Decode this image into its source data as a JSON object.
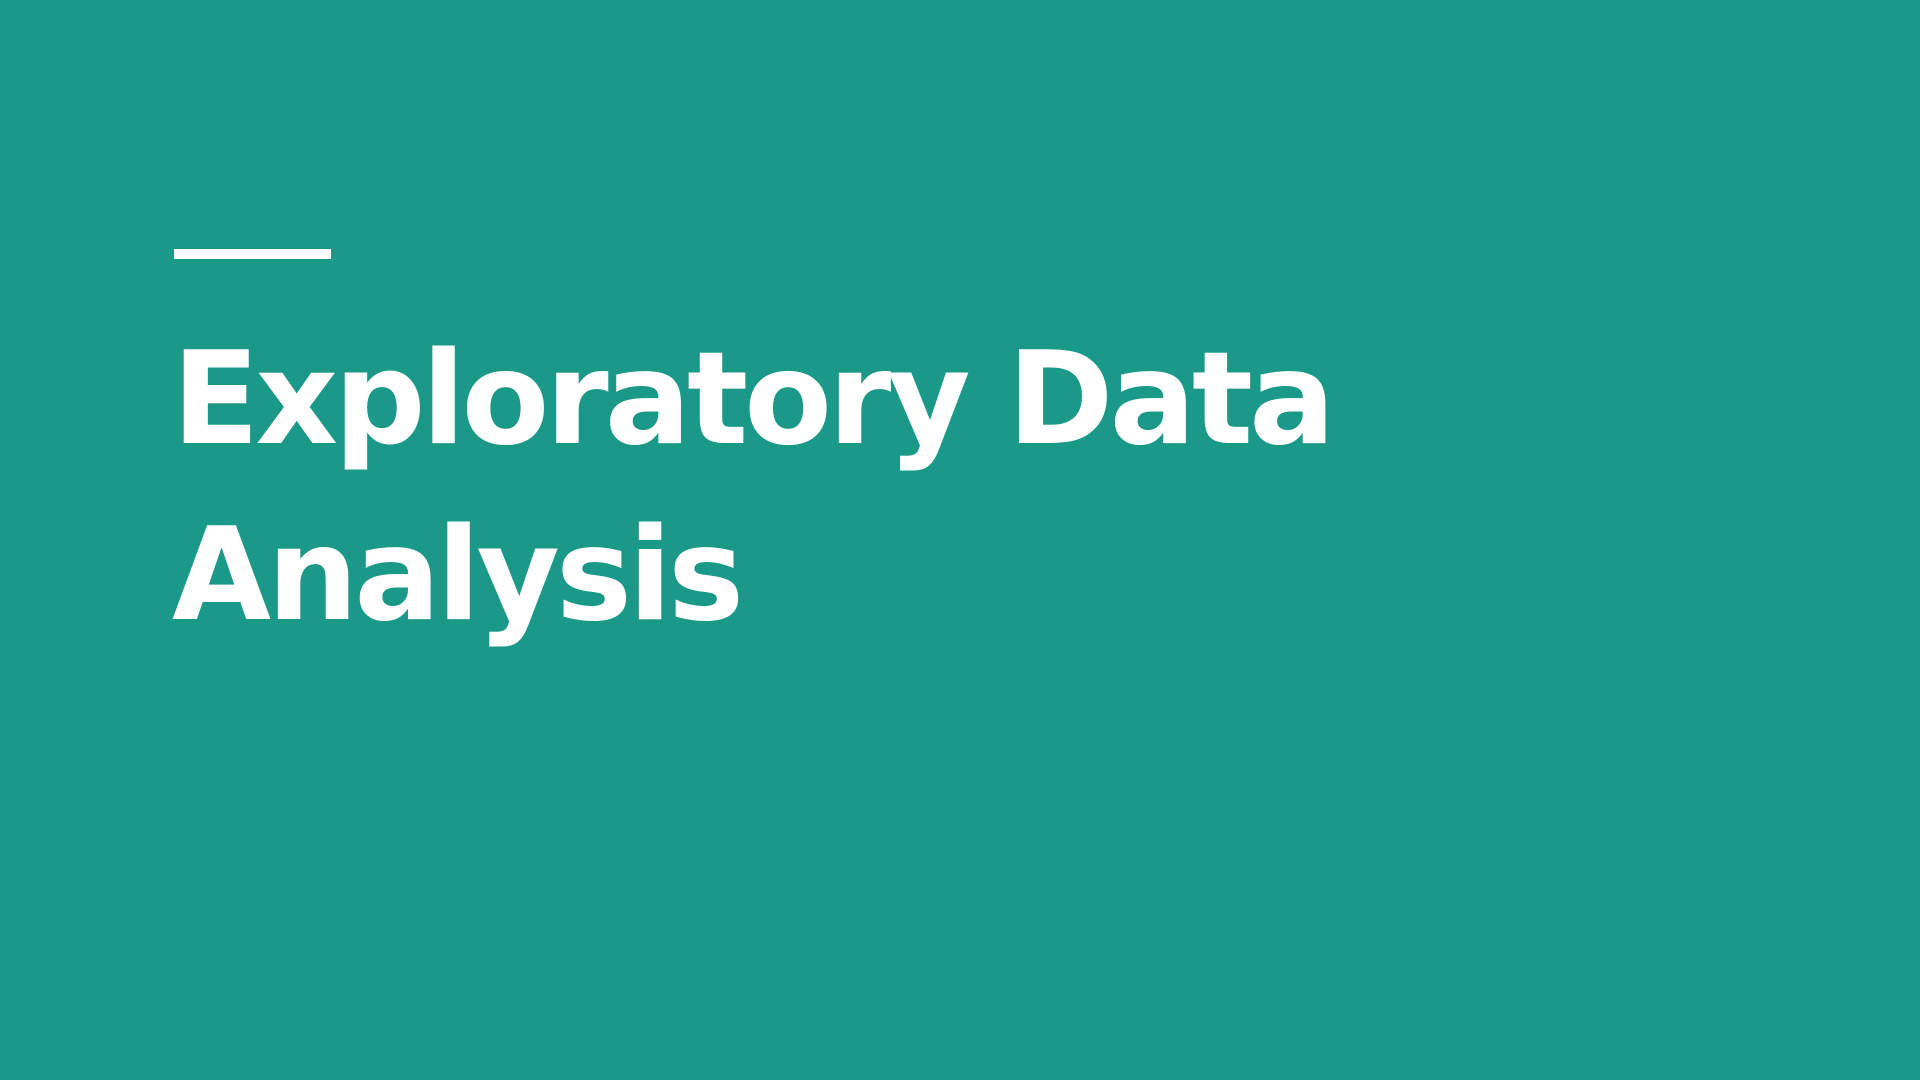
{
  "slide": {
    "background_color": "#1b9988",
    "accent_color": "#ffffff",
    "title_line_1": "Exploratory Data",
    "title_line_2": "Analysis"
  }
}
